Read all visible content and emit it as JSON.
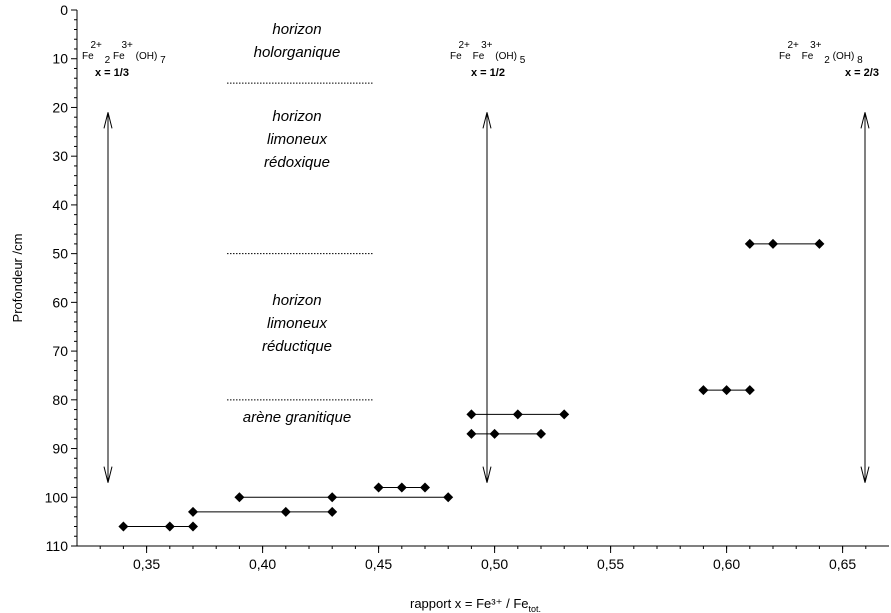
{
  "chart_data": {
    "type": "scatter",
    "xlabel": "rapport x = Fe³⁺ / Fe",
    "xlabel_sub": "tot.",
    "ylabel": "Profondeur  /cm",
    "xlim": [
      0.32,
      0.67
    ],
    "ylim": [
      0,
      110
    ],
    "y_inverted": true,
    "x_ticks": [
      "0,35",
      "0,40",
      "0,45",
      "0,50",
      "0,55",
      "0,60",
      "0,65"
    ],
    "y_ticks": [
      "0",
      "10",
      "20",
      "30",
      "40",
      "50",
      "60",
      "70",
      "80",
      "90",
      "100",
      "110"
    ],
    "grid": false,
    "series": [
      {
        "marker": "diamond",
        "groups": [
          {
            "depth": 48,
            "x": [
              0.61,
              0.62,
              0.64
            ]
          },
          {
            "depth": 78,
            "x": [
              0.59,
              0.6,
              0.61
            ]
          },
          {
            "depth": 83,
            "x": [
              0.49,
              0.51,
              0.53
            ]
          },
          {
            "depth": 87,
            "x": [
              0.49,
              0.5,
              0.52
            ]
          },
          {
            "depth": 98,
            "x": [
              0.45,
              0.46,
              0.47
            ]
          },
          {
            "depth": 100,
            "x": [
              0.39,
              0.43,
              0.48
            ]
          },
          {
            "depth": 103,
            "x": [
              0.37,
              0.41,
              0.43
            ]
          },
          {
            "depth": 106,
            "x": [
              0.34,
              0.36,
              0.37
            ]
          }
        ]
      }
    ],
    "horizons": [
      {
        "lines": [
          "horizon",
          "holorganique"
        ]
      },
      {
        "lines": [
          "horizon",
          "limoneux",
          "rédoxique"
        ]
      },
      {
        "lines": [
          "horizon",
          "limoneux",
          "réductique"
        ]
      },
      {
        "lines": [
          "arène granitique"
        ]
      }
    ],
    "horizon_boundaries": [
      15,
      50,
      80
    ],
    "reference_lines": [
      {
        "label": "x = 1/3",
        "x": 0.3333,
        "formula": [
          {
            "t": "Fe"
          },
          {
            "t": "2+",
            "s": "sup"
          },
          {
            "t": "2",
            "s": "sub"
          },
          {
            "t": "Fe"
          },
          {
            "t": "3+",
            "s": "sup"
          },
          {
            "t": "(OH)"
          },
          {
            "t": "7",
            "s": "sub"
          }
        ]
      },
      {
        "label": "x = 1/2",
        "x": 0.5,
        "formula": [
          {
            "t": "Fe"
          },
          {
            "t": "2+",
            "s": "sup"
          },
          {
            "t": "Fe"
          },
          {
            "t": "3+",
            "s": "sup"
          },
          {
            "t": "(OH)"
          },
          {
            "t": "5",
            "s": "sub"
          }
        ]
      },
      {
        "label": "x = 2/3",
        "x": 0.6667,
        "formula": [
          {
            "t": "Fe"
          },
          {
            "t": "2+",
            "s": "sup"
          },
          {
            "t": "Fe"
          },
          {
            "t": "3+",
            "s": "sup"
          },
          {
            "t": "2",
            "s": "sub"
          },
          {
            "t": "(OH)"
          },
          {
            "t": "8",
            "s": "sub"
          }
        ]
      }
    ],
    "arrow_range": [
      21,
      97
    ]
  }
}
